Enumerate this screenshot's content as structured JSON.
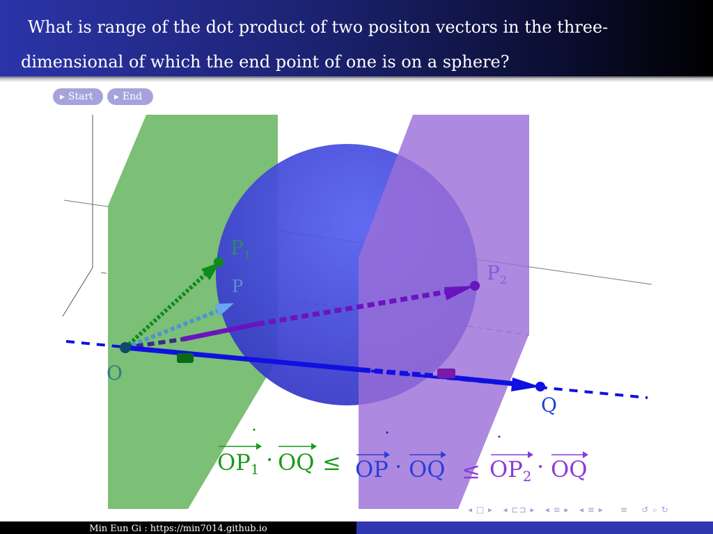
{
  "slide": {
    "title": "What is range of the dot product of two positon vectors in the three-dimensional of which the end point of one is on a sphere?"
  },
  "buttons": {
    "start": "Start",
    "end": "End"
  },
  "figure": {
    "labels": {
      "origin": "O",
      "p1": "P",
      "p1_sub": "1",
      "p": "P",
      "p2": "P",
      "p2_sub": "2",
      "q": "Q"
    },
    "inequality": {
      "op1": "OP",
      "op1_sub": "1",
      "oq_1": "OQ",
      "leq_1": "≤",
      "op": "OP",
      "oq_2": "OQ",
      "leq_2": "≤",
      "op2": "OP",
      "op2_sub": "2",
      "oq_3": "OQ",
      "dot": "·"
    },
    "colors": {
      "green_plane": "#7cbf76",
      "purple_plane": "#a57ed8",
      "sphere": "#3f42d6",
      "green": "#0f8a1e",
      "purple": "#6a14c0",
      "blue": "#1010e0",
      "light_blue": "#5b9be8"
    }
  },
  "nav": {
    "prev_frame": "◂",
    "frame": "□",
    "next_frame": "▸",
    "prev_sub": "◂",
    "sub": "⊏⊐",
    "next_sub": "▸",
    "prev_section": "◂",
    "section": "≡",
    "next_section": "▸",
    "prev_sec2": "◂",
    "sec2": "≡",
    "next_sec2": "▸",
    "align": "≡",
    "search": "↺ ⌕ ↻"
  },
  "footer": {
    "author": "Min Eun Gi : https://min7014.github.io"
  }
}
